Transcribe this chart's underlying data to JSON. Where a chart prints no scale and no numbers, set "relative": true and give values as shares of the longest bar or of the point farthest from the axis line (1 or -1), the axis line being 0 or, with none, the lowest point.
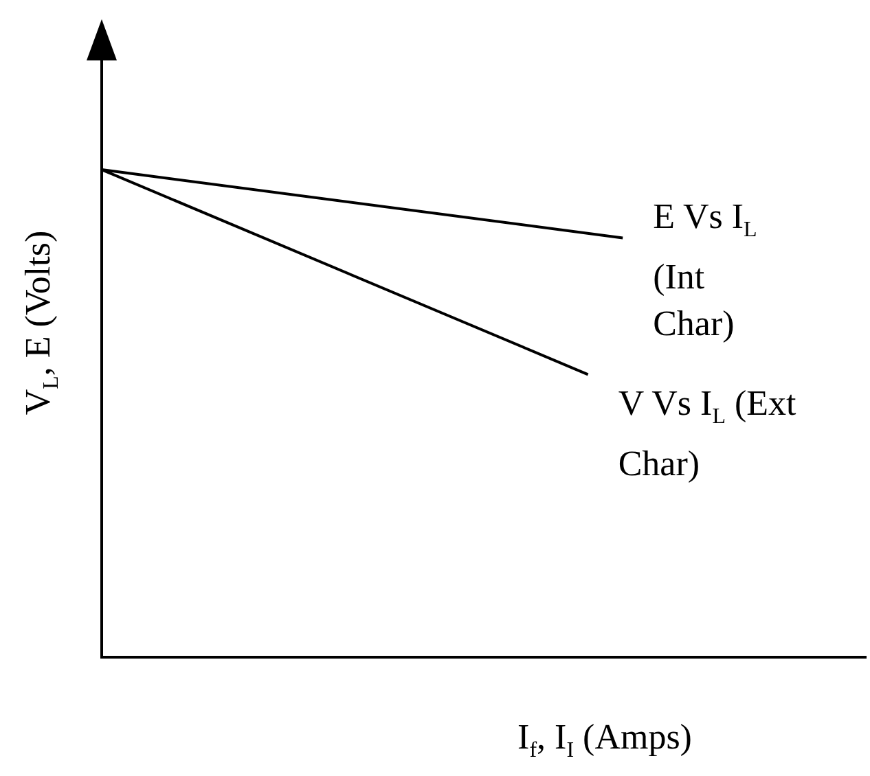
{
  "chart_data": {
    "type": "line",
    "relative": true,
    "xlabel": "I$_{f}$, I$_{I}$ (Amps)",
    "ylabel": "V$_{L}$, E (Volts)",
    "legend": false,
    "grid": false,
    "marker": "none",
    "line_style": "solid",
    "categories": [
      null,
      null,
      null,
      null,
      null,
      null,
      null,
      null,
      null,
      null,
      null,
      null,
      null,
      null,
      null,
      null,
      null,
      null,
      null,
      null,
      null,
      null,
      null
    ],
    "series": [
      {
        "name": "E Vs I$_{L}$ (Int Char)",
        "color": "#000000",
        "values": [
          1,
          null,
          null,
          null,
          null,
          null,
          null,
          null,
          null,
          null,
          null,
          null,
          null,
          null,
          null,
          0.86,
          null,
          null,
          null,
          null,
          null,
          null,
          null
        ]
      },
      {
        "name": "V Vs I$_{L}$ (Ext Char)",
        "color": "#000000",
        "values": [
          1,
          null,
          null,
          null,
          null,
          null,
          null,
          null,
          null,
          null,
          null,
          null,
          null,
          null,
          0.58,
          null,
          null,
          null,
          null,
          null,
          null,
          null,
          null
        ]
      }
    ]
  }
}
